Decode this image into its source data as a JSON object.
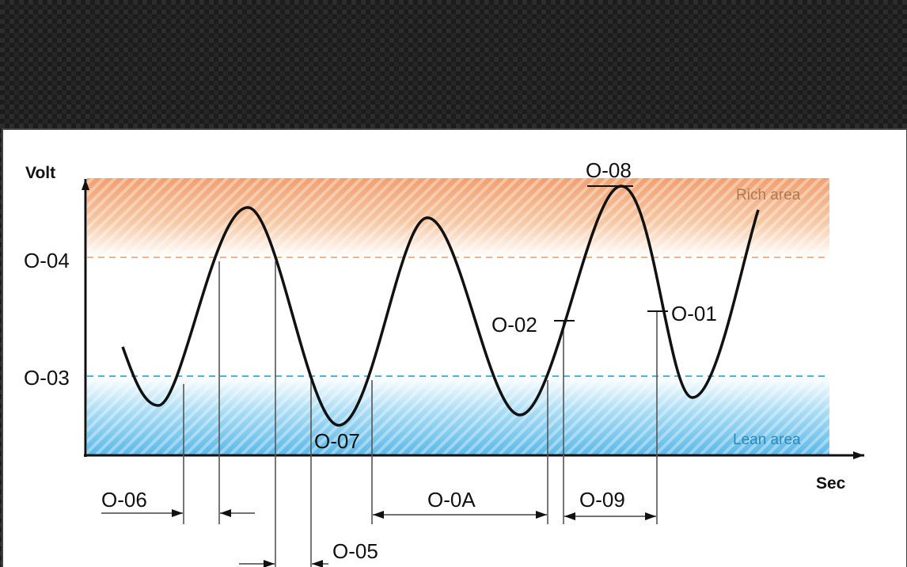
{
  "diagram": {
    "y_axis_label": "Volt",
    "x_axis_label": "Sec",
    "rich_area_label": "Rich area",
    "lean_area_label": "Lean area",
    "level_labels": {
      "upper": "O-04",
      "lower": "O-03"
    },
    "point_labels": {
      "peak": "O-08",
      "trough": "O-07",
      "rising_mark": "O-02",
      "falling_mark": "O-01"
    },
    "interval_labels": {
      "rise_time": "O-06",
      "fall_time": "O-05",
      "lean_to_rich": "O-0A",
      "rich_to_lean": "O-09"
    }
  },
  "colors": {
    "background_texture": "#1e1e1e",
    "rich_area": "#f0a070",
    "rich_text": "#b07a50",
    "lean_area": "#5bb8e8",
    "lean_text": "#2a8ab8",
    "upper_dash": "#e8b88a",
    "lower_dash": "#4fb4dc",
    "curve": "#111111"
  }
}
